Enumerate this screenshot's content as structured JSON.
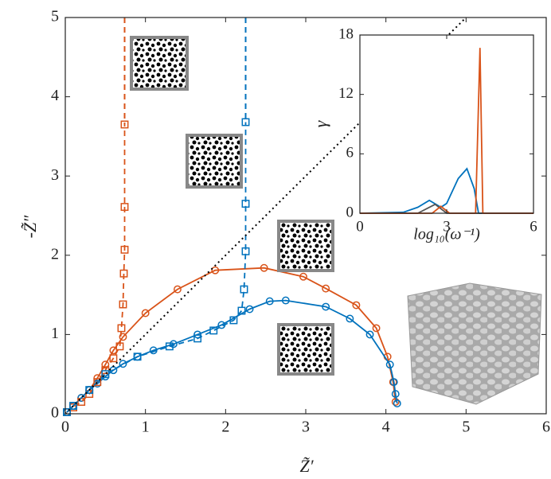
{
  "chart_data": [
    {
      "type": "line",
      "xlabel": "Z̃′",
      "ylabel": "-Z̃″",
      "xlim": [
        0,
        6
      ],
      "ylim": [
        0,
        5
      ],
      "xticks": [
        0,
        1,
        2,
        3,
        4,
        5,
        6
      ],
      "yticks": [
        0,
        1,
        2,
        3,
        4,
        5
      ],
      "series": [
        {
          "color": "#d95319",
          "marker": "circle",
          "linestyle": "solid",
          "x": [
            0.02,
            0.1,
            0.2,
            0.3,
            0.4,
            0.5,
            0.6,
            0.72,
            1.0,
            1.4,
            1.87,
            2.48,
            2.97,
            3.25,
            3.63,
            3.88,
            4.02,
            4.09,
            4.12
          ],
          "values": [
            0.02,
            0.1,
            0.2,
            0.3,
            0.45,
            0.62,
            0.8,
            0.97,
            1.27,
            1.57,
            1.81,
            1.84,
            1.73,
            1.58,
            1.37,
            1.08,
            0.72,
            0.4,
            0.15
          ]
        },
        {
          "color": "#0072bd",
          "marker": "circle",
          "linestyle": "solid",
          "x": [
            0.02,
            0.1,
            0.2,
            0.3,
            0.4,
            0.5,
            0.6,
            0.72,
            0.9,
            1.1,
            1.35,
            1.65,
            1.95,
            2.3,
            2.55,
            2.75,
            3.25,
            3.55,
            3.8,
            4.05,
            4.1,
            4.12,
            4.14
          ],
          "values": [
            0.02,
            0.1,
            0.2,
            0.3,
            0.38,
            0.47,
            0.55,
            0.63,
            0.72,
            0.8,
            0.88,
            1.0,
            1.12,
            1.32,
            1.42,
            1.43,
            1.35,
            1.2,
            1.0,
            0.62,
            0.4,
            0.25,
            0.13
          ]
        },
        {
          "color": "#d95319",
          "marker": "square",
          "linestyle": "dashed",
          "asymptote": 0.74,
          "x": [
            0.02,
            0.1,
            0.2,
            0.3,
            0.4,
            0.5,
            0.6,
            0.68,
            0.7,
            0.72,
            0.73,
            0.74,
            0.74,
            0.74
          ],
          "values": [
            0.02,
            0.08,
            0.15,
            0.25,
            0.4,
            0.55,
            0.7,
            0.85,
            1.08,
            1.38,
            1.77,
            2.07,
            2.61,
            3.65
          ]
        },
        {
          "color": "#0072bd",
          "marker": "square",
          "linestyle": "dashed",
          "asymptote": 2.25,
          "x": [
            0.02,
            0.1,
            0.3,
            0.5,
            0.9,
            1.3,
            1.65,
            1.85,
            2.1,
            2.2,
            2.23,
            2.25,
            2.25,
            2.25
          ],
          "values": [
            0.02,
            0.1,
            0.3,
            0.5,
            0.72,
            0.85,
            0.95,
            1.05,
            1.18,
            1.3,
            1.57,
            2.05,
            2.65,
            3.68
          ]
        },
        {
          "color": "#000000",
          "marker": "none",
          "linestyle": "dotted",
          "x": [
            0,
            5
          ],
          "values": [
            0,
            5
          ]
        }
      ]
    },
    {
      "type": "line",
      "xlabel": "log₁₀(ω⁻¹)",
      "ylabel": "γ",
      "xlim": [
        0,
        6
      ],
      "ylim": [
        0,
        18
      ],
      "xticks": [
        0,
        3,
        6
      ],
      "yticks": [
        0,
        6,
        12,
        18
      ],
      "series": [
        {
          "color": "#0072bd",
          "marker": "none",
          "linestyle": "solid",
          "x": [
            0,
            1.5,
            2.0,
            2.4,
            2.8,
            3.0,
            3.4,
            3.7,
            3.95,
            4.1,
            6
          ],
          "values": [
            0,
            0.1,
            0.6,
            1.3,
            0.6,
            1.0,
            3.5,
            4.5,
            2.5,
            0,
            0
          ]
        },
        {
          "color": "#555555",
          "marker": "none",
          "linestyle": "solid",
          "x": [
            0,
            2.0,
            2.6,
            3.0,
            6
          ],
          "values": [
            0,
            0,
            0.9,
            0,
            0
          ]
        },
        {
          "color": "#d95319",
          "marker": "none",
          "linestyle": "solid",
          "x": [
            0,
            2.5,
            2.8,
            3.1,
            4.0,
            4.15,
            4.25,
            6
          ],
          "values": [
            0,
            0,
            0.7,
            0,
            0,
            16.7,
            0,
            0
          ]
        }
      ]
    }
  ]
}
